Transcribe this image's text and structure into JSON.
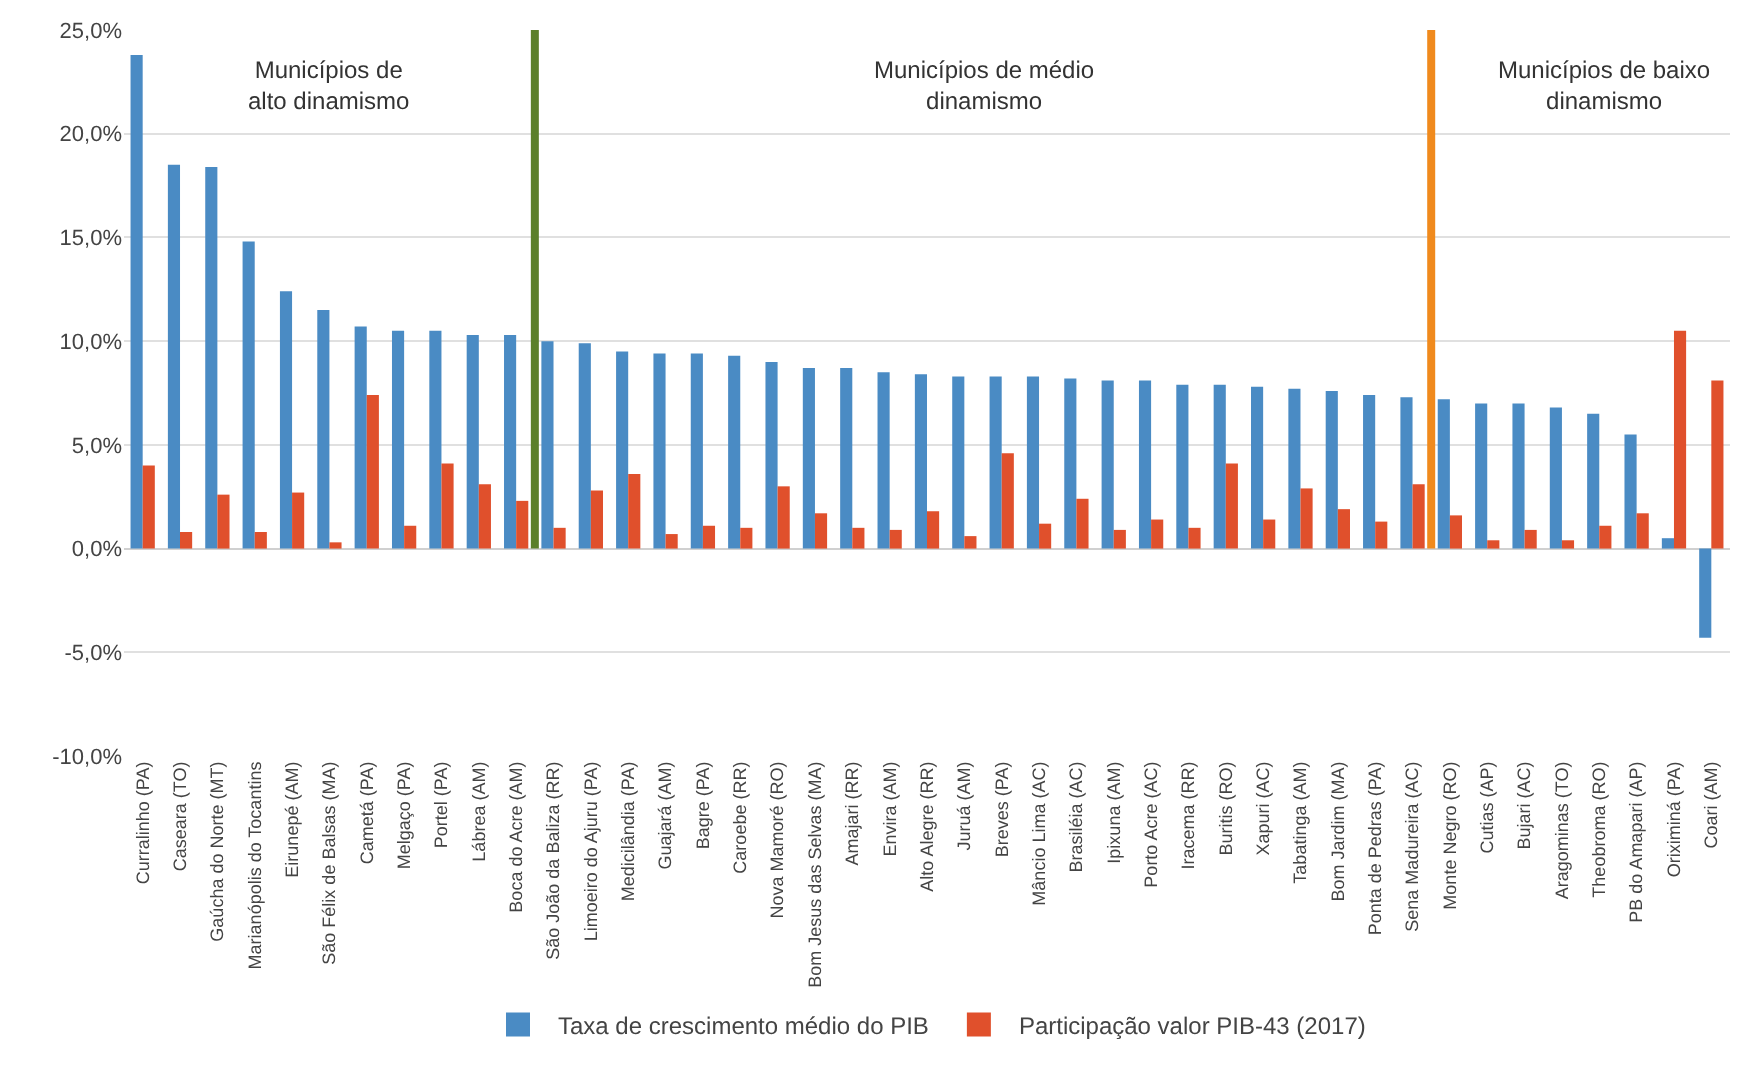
{
  "chart_data": {
    "type": "bar",
    "categories": [
      "Curralinho (PA)",
      "Caseara (TO)",
      "Gaúcha do Norte (MT)",
      "Marianópolis do Tocantins",
      "Eirunepé (AM)",
      "São Félix de Balsas (MA)",
      "Cametá (PA)",
      "Melgaço (PA)",
      "Portel (PA)",
      "Lábrea (AM)",
      "Boca do Acre (AM)",
      "São João da Baliza (RR)",
      "Limoeiro do Ajuru (PA)",
      "Medicilândia (PA)",
      "Guajará (AM)",
      "Bagre (PA)",
      "Caroebe (RR)",
      "Nova Mamoré (RO)",
      "Bom Jesus das Selvas (MA)",
      "Amajari (RR)",
      "Envira (AM)",
      "Alto Alegre (RR)",
      "Juruá (AM)",
      "Breves (PA)",
      "Mâncio Lima (AC)",
      "Brasiléia (AC)",
      "Ipixuna (AM)",
      "Porto Acre (AC)",
      "Iracema (RR)",
      "Buritis (RO)",
      "Xapuri (AC)",
      "Tabatinga (AM)",
      "Bom Jardim (MA)",
      "Ponta de Pedras (PA)",
      "Sena Madureira (AC)",
      "Monte Negro (RO)",
      "Cutias (AP)",
      "Bujari (AC)",
      "Aragominas (TO)",
      "Theobroma (RO)",
      "PB do Amapari (AP)",
      "Oriximiná (PA)",
      "Coari (AM)"
    ],
    "series": [
      {
        "name": "Taxa de crescimento médio do PIB",
        "color": "#4a8bc4",
        "values": [
          23.8,
          18.5,
          18.4,
          14.8,
          12.4,
          11.5,
          10.7,
          10.5,
          10.5,
          10.3,
          10.3,
          10.0,
          9.9,
          9.5,
          9.4,
          9.4,
          9.3,
          9.0,
          8.7,
          8.7,
          8.5,
          8.4,
          8.3,
          8.3,
          8.3,
          8.2,
          8.1,
          8.1,
          7.9,
          7.9,
          7.8,
          7.7,
          7.6,
          7.4,
          7.3,
          7.2,
          7.0,
          7.0,
          6.8,
          6.5,
          5.5,
          0.5,
          -4.3
        ]
      },
      {
        "name": "Participação valor PIB-43 (2017)",
        "color": "#e0502c",
        "values": [
          4.0,
          0.8,
          2.6,
          0.8,
          2.7,
          0.3,
          7.4,
          1.1,
          4.1,
          3.1,
          2.3,
          1.0,
          2.8,
          3.6,
          0.7,
          1.1,
          1.0,
          3.0,
          1.7,
          1.0,
          0.9,
          1.8,
          0.6,
          4.6,
          1.2,
          2.4,
          0.9,
          1.4,
          1.0,
          4.1,
          1.4,
          2.9,
          1.9,
          1.3,
          3.1,
          1.6,
          0.4,
          0.9,
          0.4,
          1.1,
          1.7,
          10.5,
          8.1
        ]
      }
    ],
    "ylim": [
      -10,
      25
    ],
    "yticks": [
      {
        "value": -10,
        "label": "-10,0%"
      },
      {
        "value": -5,
        "label": "-5,0%"
      },
      {
        "value": 0,
        "label": "0,0%"
      },
      {
        "value": 5,
        "label": "5,0%"
      },
      {
        "value": 10,
        "label": "10,0%"
      },
      {
        "value": 15,
        "label": "15,0%"
      },
      {
        "value": 20,
        "label": "20,0%"
      },
      {
        "value": 25,
        "label": "25,0%"
      }
    ],
    "grid": "y",
    "legend": "bottom",
    "ref_lines": [
      {
        "axis": "x",
        "value": "Boca do Acre (AM)",
        "color": "#5b7f2a"
      },
      {
        "axis": "x",
        "value": "Sena Madureira (AC)",
        "color": "#f08a1d"
      }
    ],
    "annotations": [
      "Municípios de\nalto dinamismo",
      "Municípios de médio\ndinamismo",
      "Municípios de baixo\ndinamismo"
    ]
  }
}
